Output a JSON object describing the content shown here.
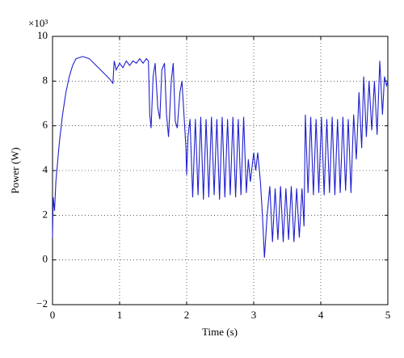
{
  "chart_data": {
    "type": "line",
    "x_label": "Time (s)",
    "y_label": "Power (W)",
    "y_multiplier": "×10³",
    "xlim": [
      0,
      5
    ],
    "xticks": [
      0,
      1,
      2,
      3,
      4,
      5
    ],
    "ylim": [
      -2,
      10
    ],
    "yticks": [
      {
        "value": -2,
        "label": "−2"
      },
      0,
      2,
      4,
      6,
      8,
      10
    ],
    "grid": true,
    "series": [
      {
        "color": "#1f1fcf",
        "x": [
          0,
          0.01,
          0.03,
          0.05,
          0.1,
          0.15,
          0.2,
          0.25,
          0.3,
          0.35,
          0.45,
          0.55,
          0.65,
          0.75,
          0.85,
          0.9,
          0.92,
          0.95,
          1.0,
          1.05,
          1.1,
          1.15,
          1.2,
          1.25,
          1.3,
          1.35,
          1.4,
          1.43,
          1.45,
          1.47,
          1.5,
          1.53,
          1.57,
          1.6,
          1.63,
          1.67,
          1.7,
          1.73,
          1.77,
          1.8,
          1.83,
          1.86,
          1.9,
          1.93,
          1.97,
          1.99,
          2.0,
          2.02,
          2.05,
          2.09,
          2.13,
          2.17,
          2.21,
          2.25,
          2.29,
          2.33,
          2.37,
          2.41,
          2.45,
          2.49,
          2.53,
          2.57,
          2.61,
          2.65,
          2.69,
          2.73,
          2.77,
          2.81,
          2.85,
          2.89,
          2.92,
          2.95,
          3.0,
          3.03,
          3.06,
          3.1,
          3.13,
          3.16,
          3.2,
          3.24,
          3.28,
          3.32,
          3.36,
          3.4,
          3.44,
          3.48,
          3.52,
          3.56,
          3.6,
          3.64,
          3.68,
          3.72,
          3.75,
          3.77,
          3.81,
          3.85,
          3.89,
          3.93,
          3.97,
          4.01,
          4.05,
          4.09,
          4.13,
          4.17,
          4.21,
          4.25,
          4.29,
          4.33,
          4.37,
          4.41,
          4.45,
          4.49,
          4.53,
          4.57,
          4.61,
          4.64,
          4.68,
          4.72,
          4.76,
          4.8,
          4.84,
          4.88,
          4.92,
          4.95,
          4.98,
          5.0
        ],
        "values": [
          1.0,
          2.8,
          2.2,
          3.5,
          5.2,
          6.5,
          7.5,
          8.2,
          8.7,
          9.0,
          9.1,
          9.0,
          8.7,
          8.4,
          8.1,
          7.9,
          8.9,
          8.5,
          8.8,
          8.6,
          8.9,
          8.7,
          8.9,
          8.8,
          9.0,
          8.8,
          9.0,
          8.9,
          6.5,
          5.9,
          8.2,
          8.8,
          6.8,
          6.3,
          8.5,
          8.8,
          6.5,
          5.5,
          8.0,
          8.8,
          6.2,
          5.9,
          7.5,
          8.0,
          6.0,
          5.0,
          3.8,
          5.5,
          6.3,
          2.8,
          6.3,
          2.9,
          6.4,
          2.7,
          6.3,
          2.8,
          6.4,
          2.9,
          6.3,
          2.7,
          6.4,
          2.8,
          6.3,
          2.9,
          6.4,
          2.8,
          6.3,
          2.9,
          6.4,
          3.0,
          4.5,
          3.5,
          4.8,
          4.0,
          4.8,
          3.5,
          2.0,
          0.1,
          2.0,
          3.3,
          0.8,
          3.2,
          0.9,
          3.3,
          0.8,
          3.2,
          0.9,
          3.3,
          0.8,
          3.2,
          1.0,
          3.2,
          1.5,
          6.5,
          3.0,
          6.4,
          2.9,
          6.3,
          3.0,
          6.4,
          2.9,
          6.3,
          3.0,
          6.4,
          2.9,
          6.3,
          3.0,
          6.4,
          3.1,
          6.3,
          3.0,
          6.5,
          4.5,
          7.5,
          5.0,
          8.2,
          5.5,
          8.0,
          5.8,
          8.0,
          5.6,
          8.9,
          6.5,
          8.2,
          7.8,
          8.0
        ]
      }
    ]
  }
}
